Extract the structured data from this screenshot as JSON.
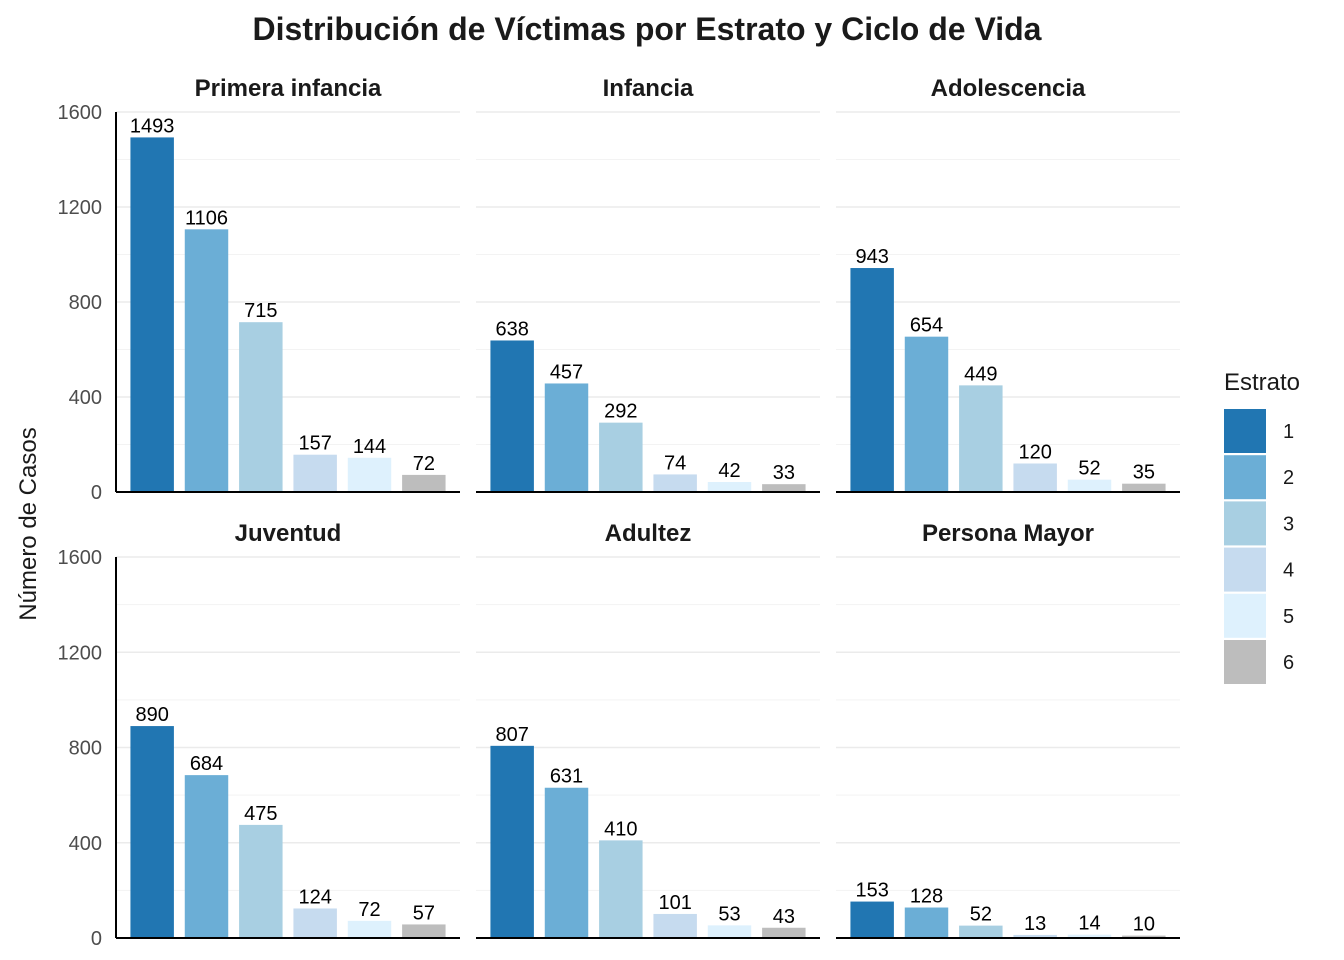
{
  "chart_data": {
    "type": "bar",
    "title": "Distribución de Víctimas por Estrato y Ciclo de Vida",
    "ylabel": "Número de Casos",
    "xlabel": "",
    "ylim": [
      0,
      1600
    ],
    "yticks": [
      "0",
      "400",
      "800",
      "1200",
      "1600"
    ],
    "grid": true,
    "legend": {
      "title": "Estrato",
      "position": "right",
      "entries": [
        {
          "label": "1",
          "color": "#2176b2"
        },
        {
          "label": "2",
          "color": "#6baed6"
        },
        {
          "label": "3",
          "color": "#a8cfe2"
        },
        {
          "label": "4",
          "color": "#c6dbef"
        },
        {
          "label": "5",
          "color": "#def1fd"
        },
        {
          "label": "6",
          "color": "#bdbdbd"
        }
      ]
    },
    "categories": [
      "1",
      "2",
      "3",
      "4",
      "5",
      "6"
    ],
    "facets": [
      {
        "name": "Primera infancia",
        "values": [
          1493,
          1106,
          715,
          157,
          144,
          72
        ]
      },
      {
        "name": "Infancia",
        "values": [
          638,
          457,
          292,
          74,
          42,
          33
        ]
      },
      {
        "name": "Adolescencia",
        "values": [
          943,
          654,
          449,
          120,
          52,
          35
        ]
      },
      {
        "name": "Juventud",
        "values": [
          890,
          684,
          475,
          124,
          72,
          57
        ]
      },
      {
        "name": "Adultez",
        "values": [
          807,
          631,
          410,
          101,
          53,
          43
        ]
      },
      {
        "name": "Persona Mayor",
        "values": [
          153,
          128,
          52,
          13,
          14,
          10
        ]
      }
    ]
  }
}
